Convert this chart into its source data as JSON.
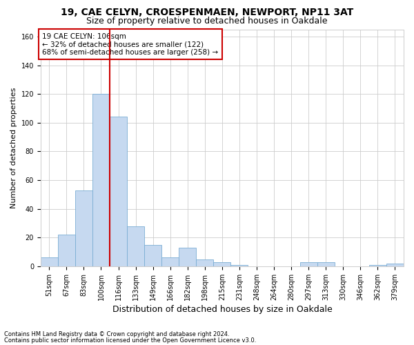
{
  "title1": "19, CAE CELYN, CROESPENMAEN, NEWPORT, NP11 3AT",
  "title2": "Size of property relative to detached houses in Oakdale",
  "xlabel": "Distribution of detached houses by size in Oakdale",
  "ylabel": "Number of detached properties",
  "footnote1": "Contains HM Land Registry data © Crown copyright and database right 2024.",
  "footnote2": "Contains public sector information licensed under the Open Government Licence v3.0.",
  "annotation_title": "19 CAE CELYN: 106sqm",
  "annotation_line1": "← 32% of detached houses are smaller (122)",
  "annotation_line2": "68% of semi-detached houses are larger (258) →",
  "bar_categories": [
    "51sqm",
    "67sqm",
    "83sqm",
    "100sqm",
    "116sqm",
    "133sqm",
    "149sqm",
    "166sqm",
    "182sqm",
    "198sqm",
    "215sqm",
    "231sqm",
    "248sqm",
    "264sqm",
    "280sqm",
    "297sqm",
    "313sqm",
    "330sqm",
    "346sqm",
    "362sqm",
    "379sqm"
  ],
  "bar_values": [
    6,
    22,
    53,
    120,
    104,
    28,
    15,
    6,
    13,
    5,
    3,
    1,
    0,
    0,
    0,
    3,
    3,
    0,
    0,
    1,
    2
  ],
  "bar_color": "#c6d9f0",
  "bar_edge_color": "#7aadd4",
  "vline_color": "#cc0000",
  "vline_x": 3.5,
  "ylim": [
    0,
    165
  ],
  "yticks": [
    0,
    20,
    40,
    60,
    80,
    100,
    120,
    140,
    160
  ],
  "background_color": "#ffffff",
  "grid_color": "#cccccc",
  "annotation_box_color": "#ffffff",
  "annotation_box_edge": "#cc0000",
  "title_fontsize": 10,
  "subtitle_fontsize": 9,
  "ylabel_fontsize": 8,
  "xlabel_fontsize": 9,
  "tick_fontsize": 7,
  "footnote_fontsize": 6,
  "annotation_fontsize": 7.5
}
